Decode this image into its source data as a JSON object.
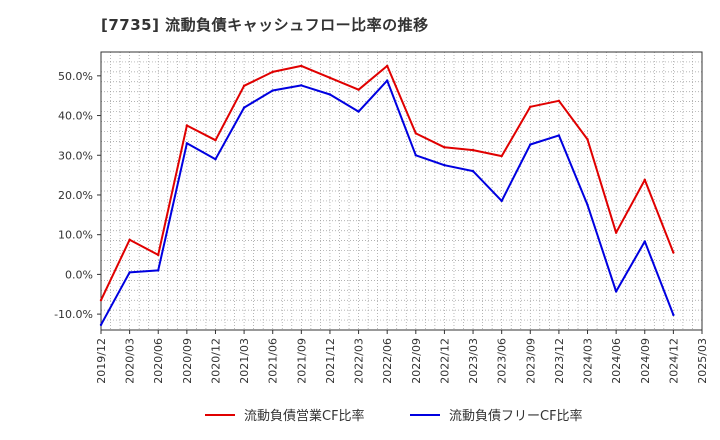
{
  "chart_data": {
    "type": "line",
    "title": "[7735]  流動負債キャッシュフロー比率の推移",
    "xlabel": "",
    "ylabel": "",
    "ylim": [
      -14,
      56
    ],
    "yticks": [
      -10,
      0,
      10,
      20,
      30,
      40,
      50
    ],
    "ytick_labels": [
      "-10.0%",
      "0.0%",
      "10.0%",
      "20.0%",
      "30.0%",
      "40.0%",
      "50.0%"
    ],
    "grid": true,
    "legend_position": "bottom-center",
    "categories": [
      "2019/12",
      "2020/03",
      "2020/06",
      "2020/09",
      "2020/12",
      "2021/03",
      "2021/06",
      "2021/09",
      "2021/12",
      "2022/03",
      "2022/06",
      "2022/09",
      "2022/12",
      "2023/03",
      "2023/06",
      "2023/09",
      "2023/12",
      "2024/03",
      "2024/06",
      "2024/09",
      "2024/12",
      "2025/03"
    ],
    "series": [
      {
        "name": "流動負債営業CF比率",
        "color": "#e00000",
        "values": [
          -6.5,
          8.7,
          4.9,
          37.5,
          33.8,
          47.5,
          51.0,
          52.5,
          49.5,
          46.5,
          52.5,
          35.5,
          32.0,
          31.3,
          29.8,
          42.2,
          43.7,
          34.0,
          10.5,
          23.8,
          5.5,
          null
        ]
      },
      {
        "name": "流動負債フリーCF比率",
        "color": "#0000e0",
        "values": [
          -12.7,
          0.5,
          1.0,
          33.0,
          29.0,
          42.0,
          46.3,
          47.6,
          45.3,
          41.0,
          48.8,
          30.0,
          27.5,
          26.0,
          18.5,
          32.7,
          35.0,
          17.5,
          -4.3,
          8.3,
          -10.2,
          null
        ]
      }
    ]
  }
}
